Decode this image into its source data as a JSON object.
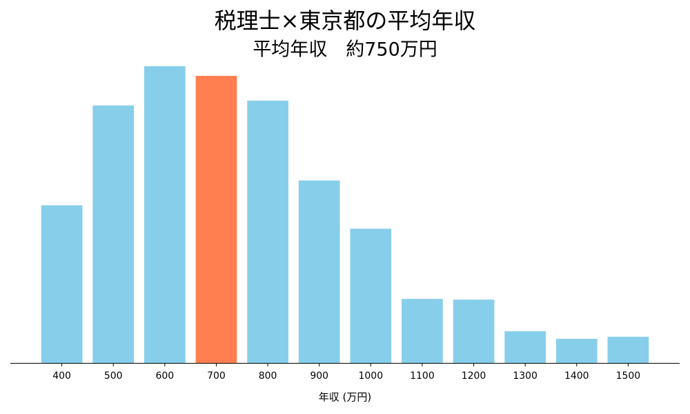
{
  "chart_data": {
    "type": "bar",
    "title": "税理士×東京都の平均年収",
    "subtitle": "平均年収　約750万円",
    "x_label": "年収 (万円)",
    "categories": [
      "400",
      "500",
      "600",
      "700",
      "800",
      "900",
      "1000",
      "1100",
      "1200",
      "1300",
      "1400",
      "1500"
    ],
    "values": [
      229,
      374,
      431,
      417,
      381,
      265,
      195,
      93,
      92,
      46,
      35,
      38
    ],
    "colors": [
      "#87ceeb",
      "#87ceeb",
      "#87ceeb",
      "#ff7f50",
      "#87ceeb",
      "#87ceeb",
      "#87ceeb",
      "#87ceeb",
      "#87ceeb",
      "#87ceeb",
      "#87ceeb",
      "#87ceeb"
    ],
    "ylim": [
      0,
      453
    ]
  }
}
